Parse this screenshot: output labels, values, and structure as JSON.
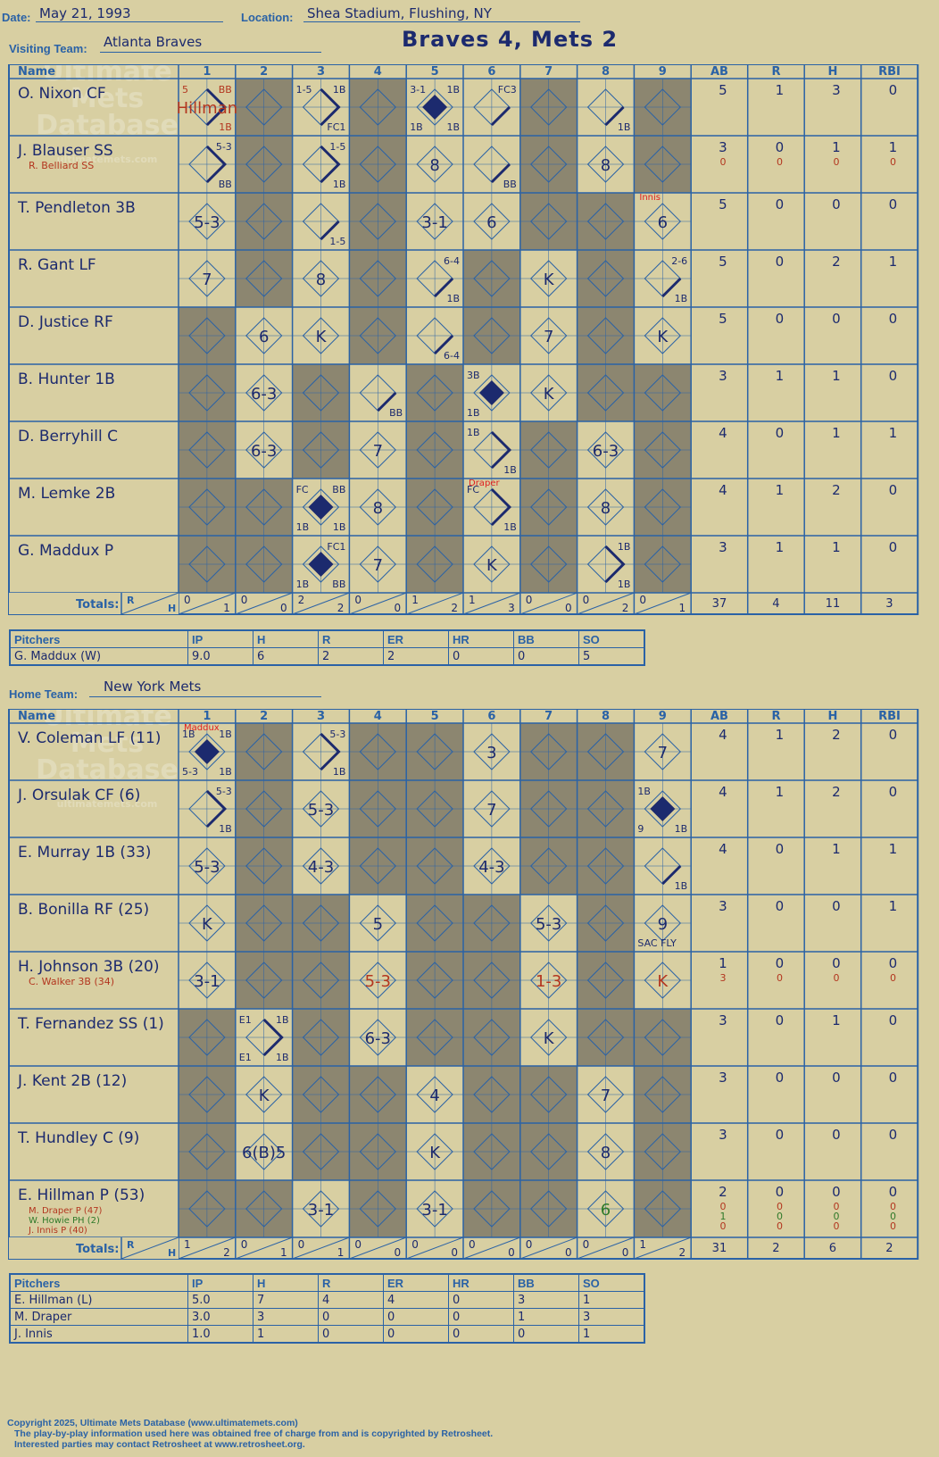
{
  "header": {
    "date_label": "Date:",
    "date": "May 21, 1993",
    "location_label": "Location:",
    "location": "Shea Stadium, Flushing, NY",
    "visiting_label": "Visiting Team:",
    "visiting_team": "Atlanta Braves",
    "home_label": "Home Team:",
    "home_team": "New York Mets",
    "score_title": "Braves 4, Mets 2"
  },
  "watermark": [
    "Ultimate",
    "Mets",
    "Database",
    "ultimatemets.com"
  ],
  "grid_labels": {
    "name": "Name",
    "innings": [
      "1",
      "2",
      "3",
      "4",
      "5",
      "6",
      "7",
      "8",
      "9"
    ],
    "stats": [
      "AB",
      "R",
      "H",
      "RBI"
    ],
    "totals": "Totals:",
    "r": "R",
    "h": "H"
  },
  "visitors": {
    "players": [
      {
        "name": "O. Nixon CF",
        "stats": [
          [
            "5",
            "1",
            "3",
            "0"
          ]
        ]
      },
      {
        "name": "J. Blauser SS",
        "sub": [
          "R. Belliard SS"
        ],
        "stats": [
          [
            "3",
            "0",
            "1",
            "1"
          ],
          [
            "0",
            "0",
            "0",
            "0"
          ]
        ]
      },
      {
        "name": "T. Pendleton 3B",
        "stats": [
          [
            "5",
            "0",
            "0",
            "0"
          ]
        ]
      },
      {
        "name": "R. Gant LF",
        "stats": [
          [
            "5",
            "0",
            "2",
            "1"
          ]
        ]
      },
      {
        "name": "D. Justice RF",
        "stats": [
          [
            "5",
            "0",
            "0",
            "0"
          ]
        ]
      },
      {
        "name": "B. Hunter 1B",
        "stats": [
          [
            "3",
            "1",
            "1",
            "0"
          ]
        ]
      },
      {
        "name": "D. Berryhill C",
        "stats": [
          [
            "4",
            "0",
            "1",
            "1"
          ]
        ]
      },
      {
        "name": "M. Lemke 2B",
        "stats": [
          [
            "4",
            "1",
            "2",
            "0"
          ]
        ]
      },
      {
        "name": "G. Maddux P",
        "stats": [
          [
            "3",
            "1",
            "1",
            "0"
          ]
        ]
      }
    ],
    "totals_rh": [
      [
        "0",
        "1"
      ],
      [
        "0",
        "0"
      ],
      [
        "2",
        "2"
      ],
      [
        "0",
        "0"
      ],
      [
        "1",
        "2"
      ],
      [
        "1",
        "3"
      ],
      [
        "0",
        "0"
      ],
      [
        "0",
        "2"
      ],
      [
        "0",
        "1"
      ]
    ],
    "totals_stats": [
      "37",
      "4",
      "11",
      "3"
    ],
    "pitchers": {
      "headers": [
        "Pitchers",
        "IP",
        "H",
        "R",
        "ER",
        "HR",
        "BB",
        "SO"
      ],
      "rows": [
        [
          "G. Maddux (W)",
          "9.0",
          "6",
          "2",
          "2",
          "0",
          "0",
          "5"
        ]
      ]
    }
  },
  "home": {
    "players": [
      {
        "name": "V. Coleman LF (11)",
        "stats": [
          [
            "4",
            "1",
            "2",
            "0"
          ]
        ]
      },
      {
        "name": "J. Orsulak CF (6)",
        "stats": [
          [
            "4",
            "1",
            "2",
            "0"
          ]
        ]
      },
      {
        "name": "E. Murray 1B (33)",
        "stats": [
          [
            "4",
            "0",
            "1",
            "1"
          ]
        ]
      },
      {
        "name": "B. Bonilla RF (25)",
        "stats": [
          [
            "3",
            "0",
            "0",
            "1"
          ]
        ]
      },
      {
        "name": "H. Johnson 3B (20)",
        "sub": [
          "C. Walker 3B (34)"
        ],
        "stats": [
          [
            "1",
            "0",
            "0",
            "0"
          ],
          [
            "3",
            "0",
            "0",
            "0"
          ]
        ]
      },
      {
        "name": "T. Fernandez SS (1)",
        "stats": [
          [
            "3",
            "0",
            "1",
            "0"
          ]
        ]
      },
      {
        "name": "J. Kent 2B (12)",
        "stats": [
          [
            "3",
            "0",
            "0",
            "0"
          ]
        ]
      },
      {
        "name": "T. Hundley C (9)",
        "stats": [
          [
            "3",
            "0",
            "0",
            "0"
          ]
        ]
      },
      {
        "name": "E. Hillman P (53)",
        "sub": [
          "M. Draper P (47)",
          "W. Howie PH (2)",
          "J. Innis P (40)"
        ],
        "stats": [
          [
            "2",
            "0",
            "0",
            "0"
          ],
          [
            "0",
            "0",
            "0",
            "0"
          ],
          [
            "1",
            "0",
            "0",
            "0"
          ],
          [
            "0",
            "0",
            "0",
            "0"
          ]
        ]
      }
    ],
    "totals_rh": [
      [
        "1",
        "2"
      ],
      [
        "0",
        "1"
      ],
      [
        "0",
        "1"
      ],
      [
        "0",
        "0"
      ],
      [
        "0",
        "0"
      ],
      [
        "0",
        "0"
      ],
      [
        "0",
        "0"
      ],
      [
        "0",
        "0"
      ],
      [
        "1",
        "2"
      ]
    ],
    "totals_stats": [
      "31",
      "2",
      "6",
      "2"
    ],
    "pitchers": {
      "headers": [
        "Pitchers",
        "IP",
        "H",
        "R",
        "ER",
        "HR",
        "BB",
        "SO"
      ],
      "rows": [
        [
          "E. Hillman (L)",
          "5.0",
          "7",
          "4",
          "4",
          "0",
          "3",
          "1"
        ],
        [
          "M. Draper",
          "3.0",
          "3",
          "0",
          "0",
          "0",
          "1",
          "3"
        ],
        [
          "J. Innis",
          "1.0",
          "1",
          "0",
          "0",
          "0",
          "0",
          "1"
        ]
      ]
    }
  },
  "footer": [
    "Copyright 2025, Ultimate Mets Database (www.ultimatemets.com)",
    "The play-by-play information used here was obtained free of charge from and is copyrighted by Retrosheet.",
    "Interested parties may contact Retrosheet at www.retrosheet.org."
  ],
  "colors": {
    "background": "#d8cfa2",
    "grid_line": "#2a62a6",
    "inactive_cell": "#8c8670",
    "ink": "#1c2a6e",
    "sub_ink": "#b3361f",
    "pinch_ink": "#2f7a2a"
  },
  "visitors_plays": [
    {
      "r": 0,
      "i": 0,
      "c": "Hillman",
      "bases": 2,
      "tl": "5",
      "tr": "BB",
      "br": "1B",
      "red": true
    },
    {
      "r": 0,
      "i": 2,
      "bases": 2,
      "tl": "1-5",
      "tr": "1B",
      "br": "FC1"
    },
    {
      "r": 0,
      "i": 4,
      "bases": 4,
      "tl": "3-1",
      "tr": "1B",
      "bl": "1B",
      "br": "1B"
    },
    {
      "r": 0,
      "i": 5,
      "bases": 1,
      "tr": "FC3"
    },
    {
      "r": 0,
      "i": 7,
      "bases": 1,
      "br": "1B"
    },
    {
      "r": 1,
      "i": 0,
      "bases": 2,
      "tr": "5-3",
      "br": "BB"
    },
    {
      "r": 1,
      "i": 2,
      "bases": 2,
      "tr": "1-5",
      "br": "1B"
    },
    {
      "r": 1,
      "i": 4,
      "c": "8"
    },
    {
      "r": 1,
      "i": 5,
      "bases": 1,
      "br": "BB"
    },
    {
      "r": 1,
      "i": 7,
      "c": "8"
    },
    {
      "r": 2,
      "i": 0,
      "c": "5-3"
    },
    {
      "r": 2,
      "i": 2,
      "bases": 1,
      "br": "1-5"
    },
    {
      "r": 2,
      "i": 4,
      "c": "3-1"
    },
    {
      "r": 2,
      "i": 5,
      "c": "6"
    },
    {
      "r": 2,
      "i": 8,
      "c": "6",
      "note": "Innis"
    },
    {
      "r": 3,
      "i": 0,
      "c": "7"
    },
    {
      "r": 3,
      "i": 2,
      "c": "8"
    },
    {
      "r": 3,
      "i": 4,
      "bases": 1,
      "tr": "6-4",
      "br": "1B"
    },
    {
      "r": 3,
      "i": 6,
      "c": "K"
    },
    {
      "r": 3,
      "i": 8,
      "bases": 1,
      "tr": "2-6",
      "br": "1B"
    },
    {
      "r": 4,
      "i": 1,
      "c": "6"
    },
    {
      "r": 4,
      "i": 2,
      "c": "K"
    },
    {
      "r": 4,
      "i": 4,
      "bases": 1,
      "br": "6-4"
    },
    {
      "r": 4,
      "i": 6,
      "c": "7"
    },
    {
      "r": 4,
      "i": 8,
      "c": "K"
    },
    {
      "r": 5,
      "i": 1,
      "c": "6-3"
    },
    {
      "r": 5,
      "i": 3,
      "bases": 1,
      "br": "BB"
    },
    {
      "r": 5,
      "i": 5,
      "bases": 4,
      "tl": "3B",
      "bl": "1B"
    },
    {
      "r": 5,
      "i": 6,
      "c": "K"
    },
    {
      "r": 6,
      "i": 1,
      "c": "6-3"
    },
    {
      "r": 6,
      "i": 3,
      "c": "7"
    },
    {
      "r": 6,
      "i": 5,
      "bases": 2,
      "tl": "1B",
      "br": "1B"
    },
    {
      "r": 6,
      "i": 7,
      "c": "6-3"
    },
    {
      "r": 7,
      "i": 2,
      "bases": 4,
      "tl": "FC",
      "tr": "BB",
      "bl": "1B",
      "br": "1B"
    },
    {
      "r": 7,
      "i": 3,
      "c": "8"
    },
    {
      "r": 7,
      "i": 5,
      "bases": 2,
      "tl": "FC",
      "br": "1B",
      "note": "Draper"
    },
    {
      "r": 7,
      "i": 7,
      "c": "8"
    },
    {
      "r": 8,
      "i": 2,
      "bases": 4,
      "tr": "FC1",
      "bl": "1B",
      "br": "BB"
    },
    {
      "r": 8,
      "i": 3,
      "c": "7"
    },
    {
      "r": 8,
      "i": 5,
      "c": "K"
    },
    {
      "r": 8,
      "i": 7,
      "bases": 2,
      "tr": "1B",
      "br": "1B"
    }
  ],
  "home_plays": [
    {
      "r": 0,
      "i": 0,
      "bases": 4,
      "tl": "1B",
      "tr": "1B",
      "bl": "5-3",
      "br": "1B",
      "note": "Maddux"
    },
    {
      "r": 0,
      "i": 2,
      "bases": 2,
      "tr": "5-3",
      "br": "1B"
    },
    {
      "r": 0,
      "i": 5,
      "c": "3"
    },
    {
      "r": 0,
      "i": 8,
      "c": "7"
    },
    {
      "r": 1,
      "i": 0,
      "bases": 2,
      "tr": "5-3",
      "br": "1B"
    },
    {
      "r": 1,
      "i": 2,
      "c": "5-3"
    },
    {
      "r": 1,
      "i": 5,
      "c": "7"
    },
    {
      "r": 1,
      "i": 8,
      "bases": 4,
      "tl": "1B",
      "bl": "9",
      "br": "1B"
    },
    {
      "r": 2,
      "i": 0,
      "c": "5-3"
    },
    {
      "r": 2,
      "i": 2,
      "c": "4-3"
    },
    {
      "r": 2,
      "i": 5,
      "c": "4-3"
    },
    {
      "r": 2,
      "i": 8,
      "bases": 1,
      "br": "1B"
    },
    {
      "r": 3,
      "i": 0,
      "c": "K"
    },
    {
      "r": 3,
      "i": 3,
      "c": "5"
    },
    {
      "r": 3,
      "i": 6,
      "c": "5-3"
    },
    {
      "r": 3,
      "i": 8,
      "c": "9",
      "bl": "SAC FLY"
    },
    {
      "r": 4,
      "i": 0,
      "c": "3-1"
    },
    {
      "r": 4,
      "i": 3,
      "c": "5-3",
      "red": true
    },
    {
      "r": 4,
      "i": 6,
      "c": "1-3",
      "red": true
    },
    {
      "r": 4,
      "i": 8,
      "c": "K",
      "red": true
    },
    {
      "r": 5,
      "i": 1,
      "bases": 2,
      "tl": "E1",
      "tr": "1B",
      "bl": "E1",
      "br": "1B"
    },
    {
      "r": 5,
      "i": 3,
      "c": "6-3"
    },
    {
      "r": 5,
      "i": 6,
      "c": "K"
    },
    {
      "r": 6,
      "i": 1,
      "c": "K"
    },
    {
      "r": 6,
      "i": 4,
      "c": "4"
    },
    {
      "r": 6,
      "i": 7,
      "c": "7"
    },
    {
      "r": 7,
      "i": 1,
      "c": "6(B)5"
    },
    {
      "r": 7,
      "i": 4,
      "c": "K"
    },
    {
      "r": 7,
      "i": 7,
      "c": "8"
    },
    {
      "r": 8,
      "i": 2,
      "c": "3-1"
    },
    {
      "r": 8,
      "i": 4,
      "c": "3-1"
    },
    {
      "r": 8,
      "i": 7,
      "c": "6",
      "green": true
    }
  ]
}
